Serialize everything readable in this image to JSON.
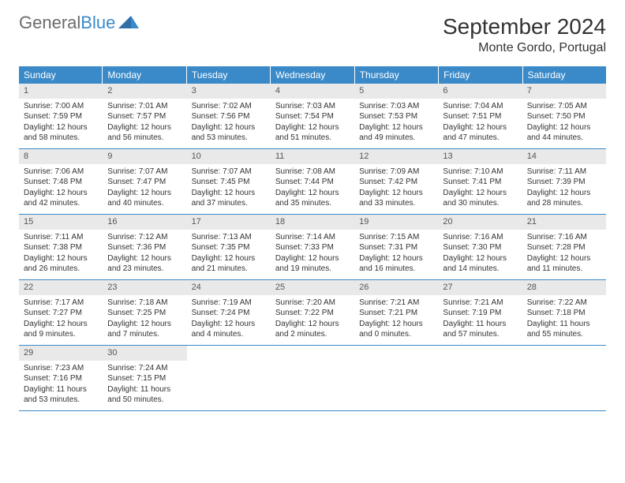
{
  "logo": {
    "part1": "General",
    "part2": "Blue"
  },
  "title": "September 2024",
  "location": "Monte Gordo, Portugal",
  "colors": {
    "header_bg": "#3a8ac9",
    "header_text": "#ffffff",
    "daynum_bg": "#e9e9e9",
    "week_border": "#3a8ac9",
    "body_text": "#333333"
  },
  "weekdays": [
    "Sunday",
    "Monday",
    "Tuesday",
    "Wednesday",
    "Thursday",
    "Friday",
    "Saturday"
  ],
  "days": [
    {
      "n": "1",
      "sunrise": "Sunrise: 7:00 AM",
      "sunset": "Sunset: 7:59 PM",
      "daylight": "Daylight: 12 hours and 58 minutes."
    },
    {
      "n": "2",
      "sunrise": "Sunrise: 7:01 AM",
      "sunset": "Sunset: 7:57 PM",
      "daylight": "Daylight: 12 hours and 56 minutes."
    },
    {
      "n": "3",
      "sunrise": "Sunrise: 7:02 AM",
      "sunset": "Sunset: 7:56 PM",
      "daylight": "Daylight: 12 hours and 53 minutes."
    },
    {
      "n": "4",
      "sunrise": "Sunrise: 7:03 AM",
      "sunset": "Sunset: 7:54 PM",
      "daylight": "Daylight: 12 hours and 51 minutes."
    },
    {
      "n": "5",
      "sunrise": "Sunrise: 7:03 AM",
      "sunset": "Sunset: 7:53 PM",
      "daylight": "Daylight: 12 hours and 49 minutes."
    },
    {
      "n": "6",
      "sunrise": "Sunrise: 7:04 AM",
      "sunset": "Sunset: 7:51 PM",
      "daylight": "Daylight: 12 hours and 47 minutes."
    },
    {
      "n": "7",
      "sunrise": "Sunrise: 7:05 AM",
      "sunset": "Sunset: 7:50 PM",
      "daylight": "Daylight: 12 hours and 44 minutes."
    },
    {
      "n": "8",
      "sunrise": "Sunrise: 7:06 AM",
      "sunset": "Sunset: 7:48 PM",
      "daylight": "Daylight: 12 hours and 42 minutes."
    },
    {
      "n": "9",
      "sunrise": "Sunrise: 7:07 AM",
      "sunset": "Sunset: 7:47 PM",
      "daylight": "Daylight: 12 hours and 40 minutes."
    },
    {
      "n": "10",
      "sunrise": "Sunrise: 7:07 AM",
      "sunset": "Sunset: 7:45 PM",
      "daylight": "Daylight: 12 hours and 37 minutes."
    },
    {
      "n": "11",
      "sunrise": "Sunrise: 7:08 AM",
      "sunset": "Sunset: 7:44 PM",
      "daylight": "Daylight: 12 hours and 35 minutes."
    },
    {
      "n": "12",
      "sunrise": "Sunrise: 7:09 AM",
      "sunset": "Sunset: 7:42 PM",
      "daylight": "Daylight: 12 hours and 33 minutes."
    },
    {
      "n": "13",
      "sunrise": "Sunrise: 7:10 AM",
      "sunset": "Sunset: 7:41 PM",
      "daylight": "Daylight: 12 hours and 30 minutes."
    },
    {
      "n": "14",
      "sunrise": "Sunrise: 7:11 AM",
      "sunset": "Sunset: 7:39 PM",
      "daylight": "Daylight: 12 hours and 28 minutes."
    },
    {
      "n": "15",
      "sunrise": "Sunrise: 7:11 AM",
      "sunset": "Sunset: 7:38 PM",
      "daylight": "Daylight: 12 hours and 26 minutes."
    },
    {
      "n": "16",
      "sunrise": "Sunrise: 7:12 AM",
      "sunset": "Sunset: 7:36 PM",
      "daylight": "Daylight: 12 hours and 23 minutes."
    },
    {
      "n": "17",
      "sunrise": "Sunrise: 7:13 AM",
      "sunset": "Sunset: 7:35 PM",
      "daylight": "Daylight: 12 hours and 21 minutes."
    },
    {
      "n": "18",
      "sunrise": "Sunrise: 7:14 AM",
      "sunset": "Sunset: 7:33 PM",
      "daylight": "Daylight: 12 hours and 19 minutes."
    },
    {
      "n": "19",
      "sunrise": "Sunrise: 7:15 AM",
      "sunset": "Sunset: 7:31 PM",
      "daylight": "Daylight: 12 hours and 16 minutes."
    },
    {
      "n": "20",
      "sunrise": "Sunrise: 7:16 AM",
      "sunset": "Sunset: 7:30 PM",
      "daylight": "Daylight: 12 hours and 14 minutes."
    },
    {
      "n": "21",
      "sunrise": "Sunrise: 7:16 AM",
      "sunset": "Sunset: 7:28 PM",
      "daylight": "Daylight: 12 hours and 11 minutes."
    },
    {
      "n": "22",
      "sunrise": "Sunrise: 7:17 AM",
      "sunset": "Sunset: 7:27 PM",
      "daylight": "Daylight: 12 hours and 9 minutes."
    },
    {
      "n": "23",
      "sunrise": "Sunrise: 7:18 AM",
      "sunset": "Sunset: 7:25 PM",
      "daylight": "Daylight: 12 hours and 7 minutes."
    },
    {
      "n": "24",
      "sunrise": "Sunrise: 7:19 AM",
      "sunset": "Sunset: 7:24 PM",
      "daylight": "Daylight: 12 hours and 4 minutes."
    },
    {
      "n": "25",
      "sunrise": "Sunrise: 7:20 AM",
      "sunset": "Sunset: 7:22 PM",
      "daylight": "Daylight: 12 hours and 2 minutes."
    },
    {
      "n": "26",
      "sunrise": "Sunrise: 7:21 AM",
      "sunset": "Sunset: 7:21 PM",
      "daylight": "Daylight: 12 hours and 0 minutes."
    },
    {
      "n": "27",
      "sunrise": "Sunrise: 7:21 AM",
      "sunset": "Sunset: 7:19 PM",
      "daylight": "Daylight: 11 hours and 57 minutes."
    },
    {
      "n": "28",
      "sunrise": "Sunrise: 7:22 AM",
      "sunset": "Sunset: 7:18 PM",
      "daylight": "Daylight: 11 hours and 55 minutes."
    },
    {
      "n": "29",
      "sunrise": "Sunrise: 7:23 AM",
      "sunset": "Sunset: 7:16 PM",
      "daylight": "Daylight: 11 hours and 53 minutes."
    },
    {
      "n": "30",
      "sunrise": "Sunrise: 7:24 AM",
      "sunset": "Sunset: 7:15 PM",
      "daylight": "Daylight: 11 hours and 50 minutes."
    }
  ]
}
